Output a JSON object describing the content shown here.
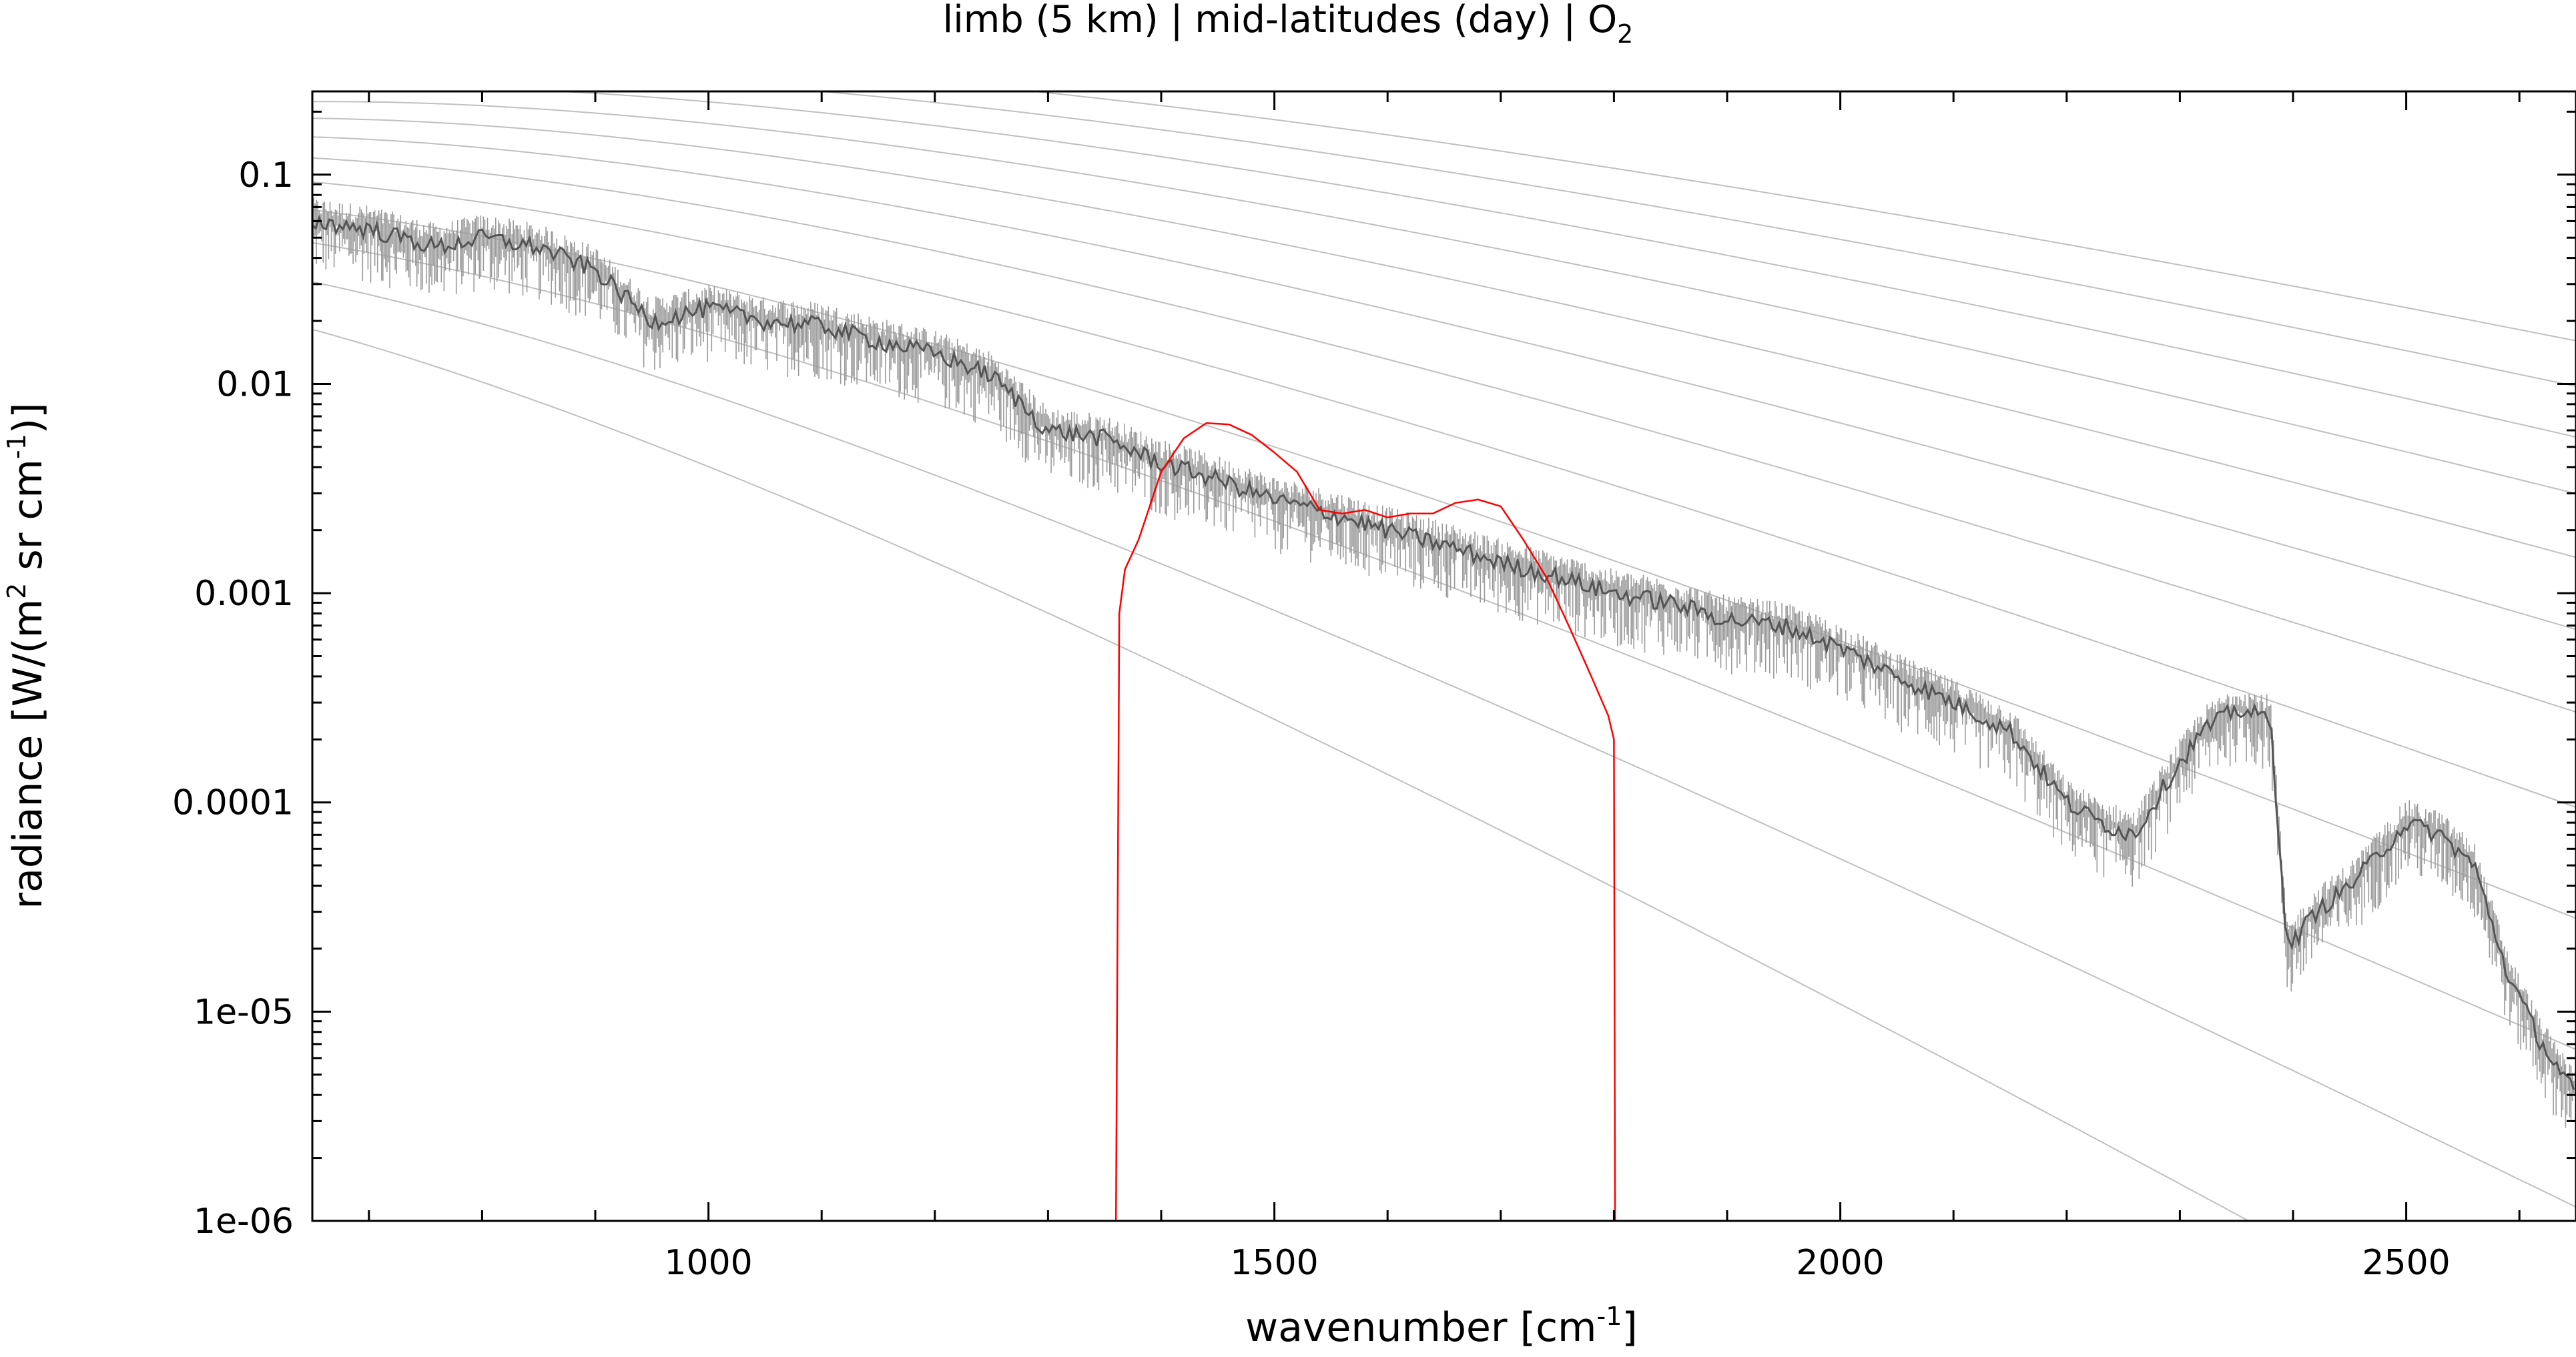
{
  "chart_data": {
    "type": "line",
    "title": {
      "prefix": "limb (5 km) | mid-latitudes (day) | O",
      "subscript": "2"
    },
    "xlabel": {
      "prefix": "wavenumber [cm",
      "superscript": "-1",
      "suffix": "]"
    },
    "ylabel": {
      "prefix": "radiance [W/(m",
      "sup1": "2",
      "middle": " sr cm",
      "sup2": "-1",
      "suffix": ")]"
    },
    "xlim": [
      650,
      2650
    ],
    "ylim": [
      1e-06,
      0.25
    ],
    "yscale": "log",
    "grid": false,
    "legend": "none",
    "x_ticks": [
      1000,
      1500,
      2000,
      2500
    ],
    "x_tick_labels": [
      "1000",
      "1500",
      "2000",
      "2500"
    ],
    "y_ticks": [
      0.1,
      0.01,
      0.001,
      0.0001,
      1e-05,
      1e-06
    ],
    "y_tick_labels": [
      "0.1",
      "0.01",
      "0.001",
      "0.0001",
      "1e-05",
      "1e-06"
    ],
    "colors": {
      "spectrum": "#555555",
      "filter": "#ff0000",
      "planck": "#c0c0c0",
      "axes": "#000000"
    },
    "series": [
      {
        "role": "radiance spectrum (envelope)",
        "x": [
          650,
          700,
          760,
          800,
          850,
          900,
          950,
          1000,
          1050,
          1100,
          1150,
          1200,
          1250,
          1300,
          1350,
          1400,
          1450,
          1500,
          1550,
          1600,
          1650,
          1700,
          1750,
          1800,
          1850,
          1900,
          1950,
          2000,
          2050,
          2100,
          2150,
          2200,
          2230,
          2260,
          2290,
          2320,
          2350,
          2380,
          2395,
          2420,
          2450,
          2480,
          2500,
          2530,
          2560,
          2590,
          2620,
          2650
        ],
        "y": [
          0.06,
          0.055,
          0.045,
          0.05,
          0.045,
          0.035,
          0.02,
          0.023,
          0.02,
          0.019,
          0.016,
          0.014,
          0.011,
          0.006,
          0.0055,
          0.0042,
          0.0035,
          0.0028,
          0.0024,
          0.002,
          0.0017,
          0.0014,
          0.0012,
          0.001,
          0.0009,
          0.00075,
          0.0007,
          0.00055,
          0.0004,
          0.0003,
          0.00022,
          0.0001,
          8e-05,
          7e-05,
          0.00013,
          0.00022,
          0.00028,
          0.00025,
          2e-05,
          3e-05,
          4e-05,
          6e-05,
          8e-05,
          7e-05,
          5e-05,
          1.5e-05,
          7e-06,
          4e-06
        ]
      },
      {
        "role": "O2 filter function (scaled)",
        "x": [
          1360,
          1363,
          1368,
          1380,
          1400,
          1420,
          1440,
          1460,
          1480,
          1500,
          1520,
          1540,
          1560,
          1580,
          1600,
          1620,
          1640,
          1660,
          1680,
          1700,
          1720,
          1740,
          1760,
          1780,
          1795,
          1800,
          1801
        ],
        "y": [
          1e-06,
          0.0008,
          0.0013,
          0.0018,
          0.0038,
          0.0055,
          0.0065,
          0.0064,
          0.0057,
          0.0047,
          0.0038,
          0.0025,
          0.0024,
          0.0025,
          0.0023,
          0.0024,
          0.0024,
          0.0027,
          0.0028,
          0.0026,
          0.0018,
          0.0012,
          0.0007,
          0.0004,
          0.00026,
          0.0002,
          1e-06
        ]
      }
    ],
    "planck_reference_temperatures_K": [
      180,
      200,
      220,
      240,
      260,
      280,
      300,
      320,
      340,
      360,
      380,
      400
    ]
  }
}
